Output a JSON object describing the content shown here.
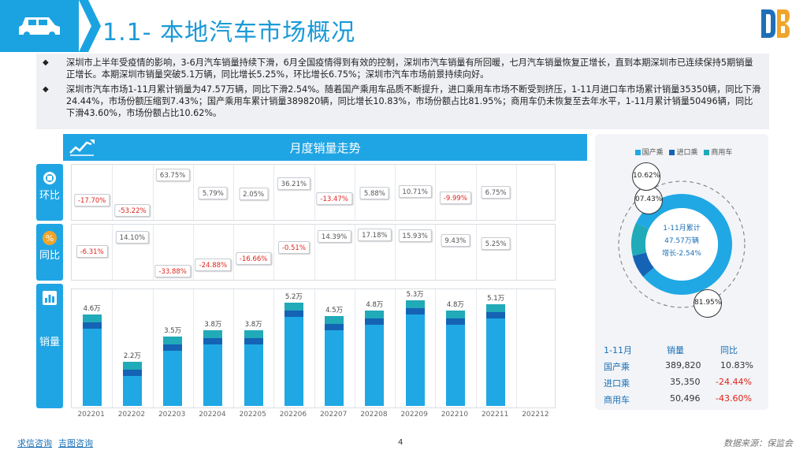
{
  "header": {
    "title": "1.1- 本地汽车市场概况"
  },
  "summary": {
    "bullets": [
      "深圳市上半年受疫情的影响，3-6月汽车销量持续下滑，6月全国疫情得到有效的控制，深圳市汽车销量有所回暖，七月汽车销量恢复正增长，直到本期深圳市已连续保持5期销量正增长。本期深圳市销量突破5.1万辆，同比增长5.25%，环比增长6.75%；深圳市汽车市场前景持续向好。",
      "深圳市汽车市场1-11月累计销量为47.57万辆，同比下滑2.54%。随着国产乘用车品质不断提升，进口乘用车市场不断受到挤压，1-11月进口车市场累计销量35350辆，同比下滑24.44%，市场份额压缩到7.43%；国产乘用车累计销量389820辆，同比增长10.83%，市场份额占比81.95%；商用车仍未恢复至去年水平，1-11月累计销量50496辆，同比下滑43.60%，市场份额占比10.62%。"
    ]
  },
  "chart_panel": {
    "title": "月度销量走势",
    "tabs": {
      "mom": "环比",
      "yoy": "同比",
      "volume": "销量"
    }
  },
  "chart_data": {
    "type": "bar",
    "title": "月度销量走势",
    "categories": [
      "202201",
      "202202",
      "202203",
      "202204",
      "202205",
      "202206",
      "202207",
      "202208",
      "202209",
      "202210",
      "202211",
      "202212"
    ],
    "series": [
      {
        "name": "销量",
        "values": [
          4.6,
          2.2,
          3.5,
          3.8,
          3.8,
          5.2,
          4.5,
          4.8,
          5.3,
          4.8,
          5.1,
          null
        ]
      },
      {
        "name": "环比",
        "values": [
          -17.7,
          -53.22,
          63.75,
          5.79,
          2.05,
          36.21,
          -13.47,
          5.88,
          10.71,
          -9.99,
          6.75,
          null
        ]
      },
      {
        "name": "同比",
        "values": [
          -6.31,
          14.1,
          -33.88,
          -24.88,
          -16.66,
          -0.51,
          14.39,
          17.18,
          15.93,
          9.43,
          5.25,
          null
        ]
      }
    ],
    "volume_labels": [
      "4.6万",
      "2.2万",
      "3.5万",
      "3.8万",
      "3.8万",
      "5.2万",
      "4.5万",
      "4.8万",
      "5.3万",
      "4.8万",
      "5.1万",
      ""
    ],
    "mom_labels": [
      "-17.70%",
      "-53.22%",
      "63.75%",
      "5.79%",
      "2.05%",
      "36.21%",
      "-13.47%",
      "5.88%",
      "10.71%",
      "-9.99%",
      "6.75%"
    ],
    "yoy_labels": [
      "-6.31%",
      "14.10%",
      "-33.88%",
      "-24.88%",
      "-16.66%",
      "-0.51%",
      "14.39%",
      "17.18%",
      "15.93%",
      "9.43%",
      "5.25%"
    ],
    "colors": {
      "body": "#1fa8e4",
      "mid": "#1563b5",
      "cap": "#21aab8",
      "negative": "#e0231b"
    }
  },
  "share": {
    "legend": [
      "国产乘",
      "进口乘",
      "商用车"
    ],
    "legend_colors": [
      "#1fa8e4",
      "#1563b5",
      "#21aab8"
    ],
    "values": [
      81.95,
      7.43,
      10.62
    ],
    "labels": [
      "81.95%",
      "07.43%",
      "10.62%"
    ],
    "center_line1": "1-11月累计",
    "center_line2": "47.57万辆",
    "center_line3": "增长-2.54%"
  },
  "stats": {
    "headers": [
      "1-11月",
      "销量",
      "同比"
    ],
    "rows": [
      {
        "name": "国产乘",
        "volume": "389,820",
        "yoy": "10.83%"
      },
      {
        "name": "进口乘",
        "volume": "35,350",
        "yoy": "-24.44%"
      },
      {
        "name": "商用车",
        "volume": "50,496",
        "yoy": "-43.60%"
      }
    ]
  },
  "footer": {
    "link1": "求信咨询",
    "link2": "吉图咨询",
    "page": "4",
    "source": "数据来源：保监会"
  }
}
